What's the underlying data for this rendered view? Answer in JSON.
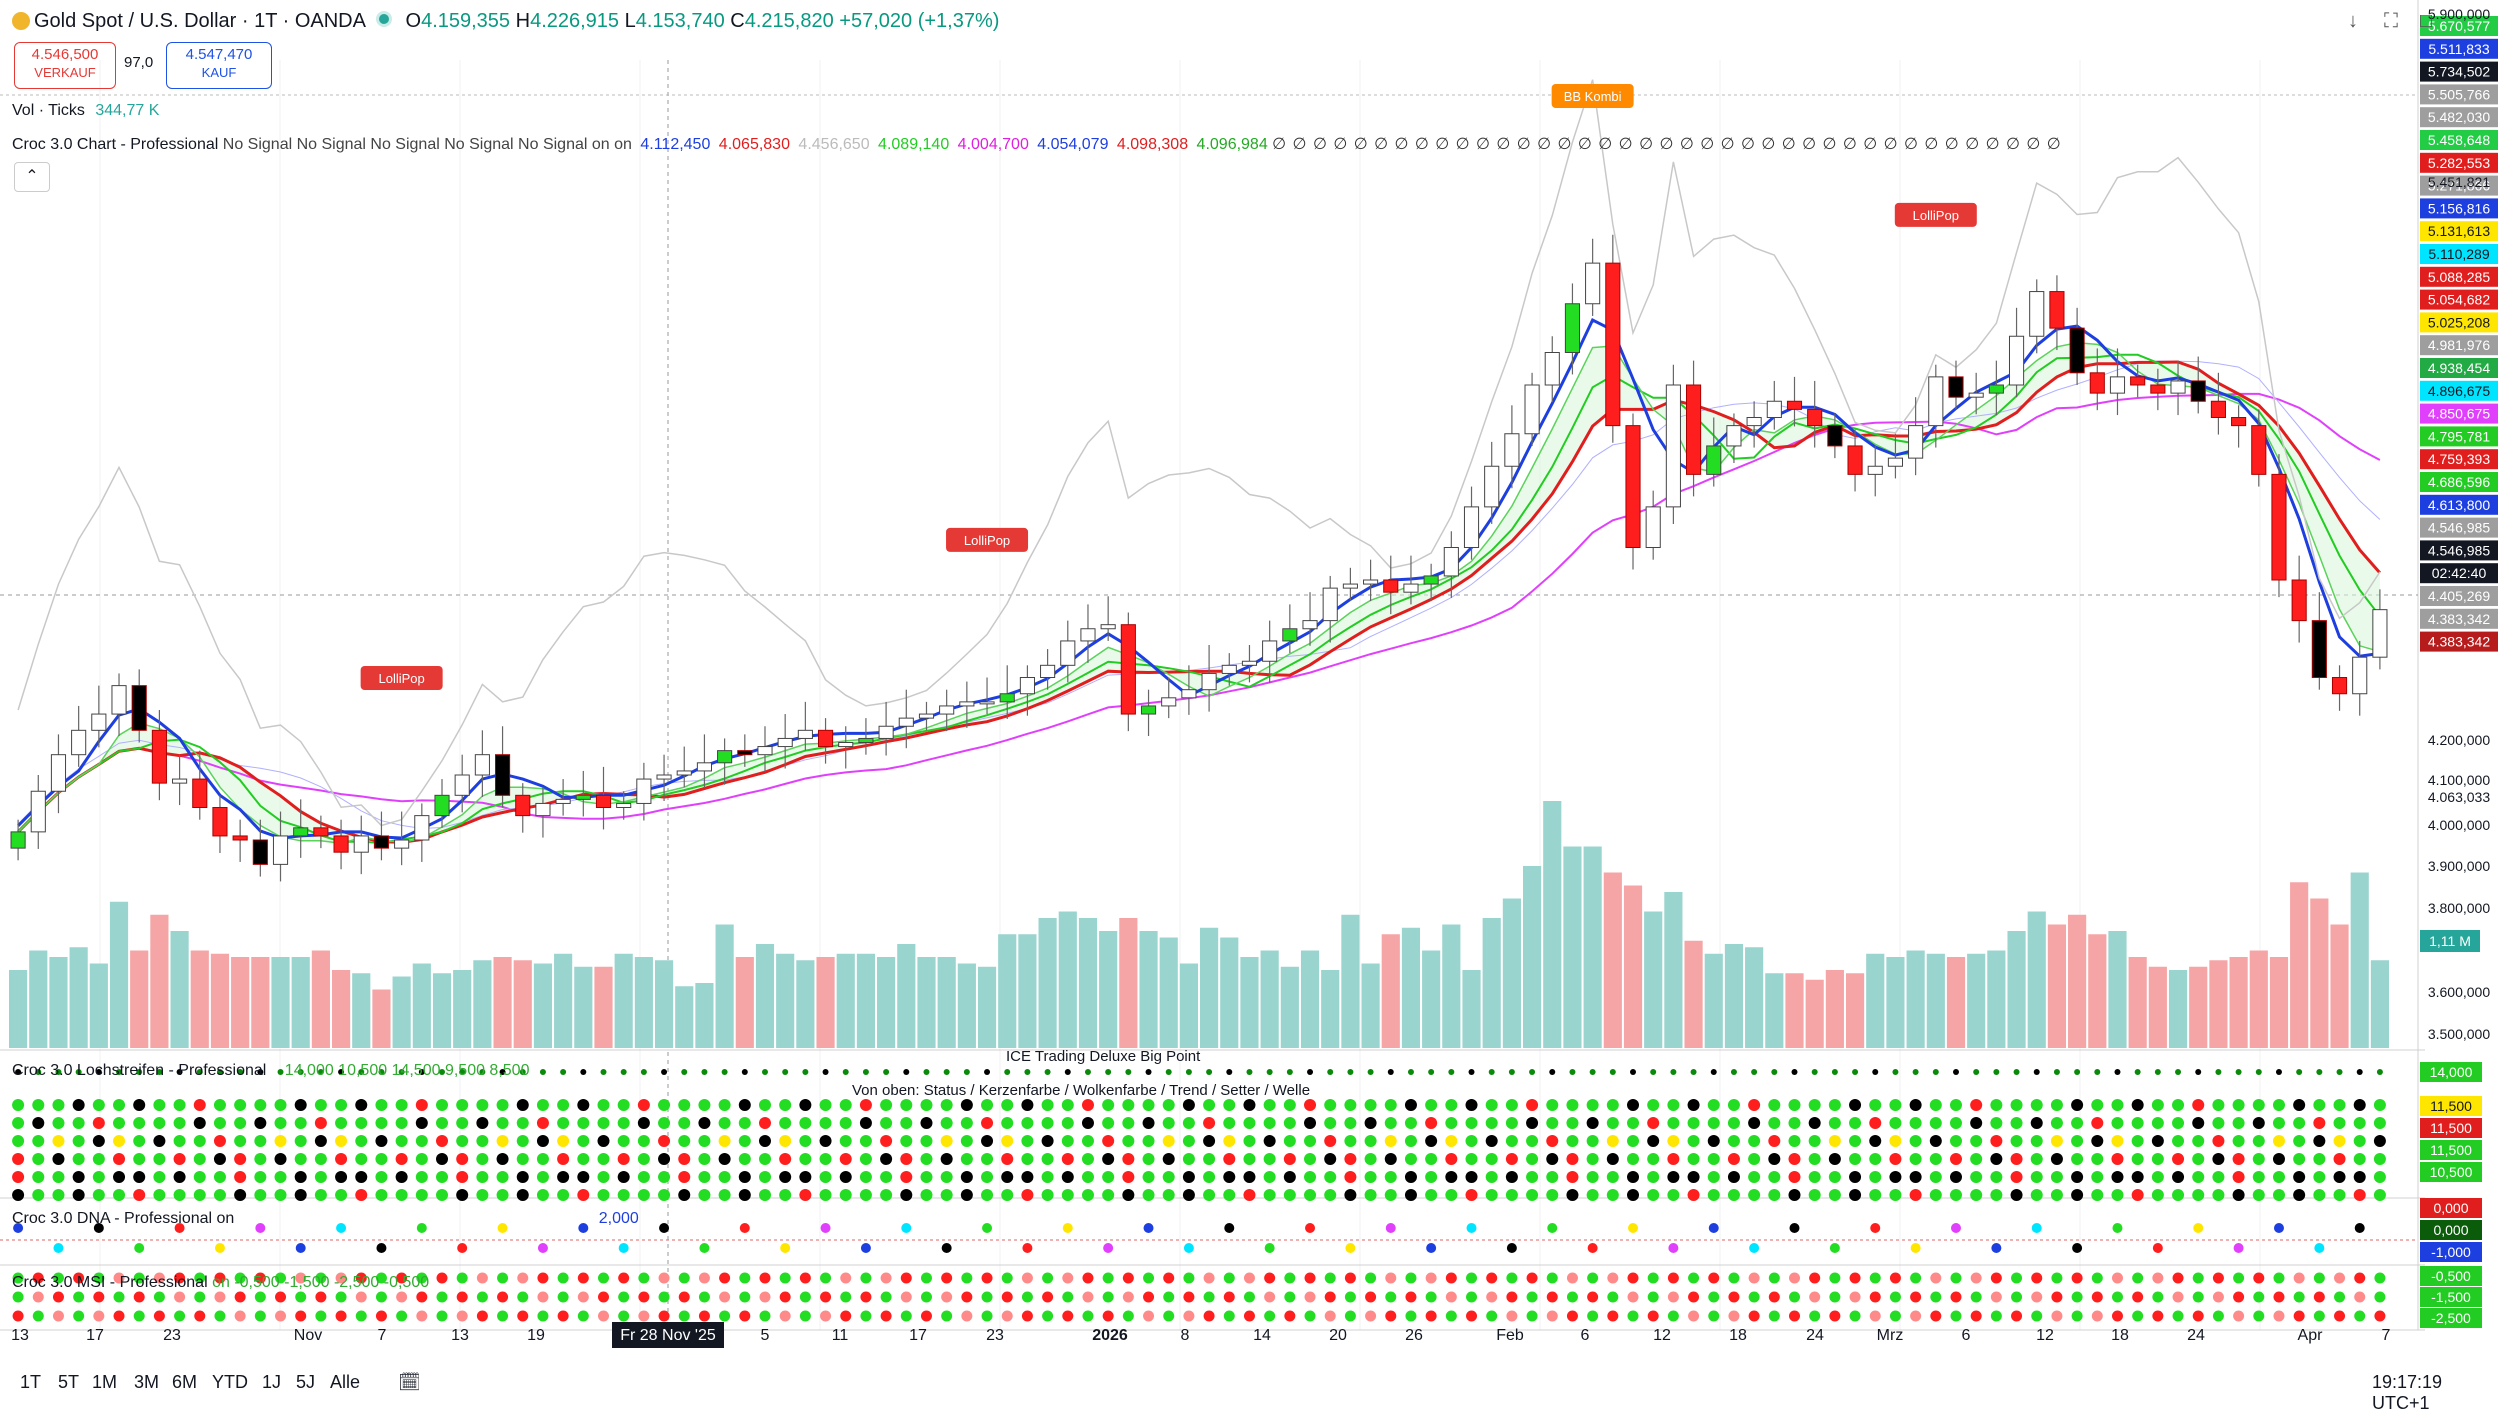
{
  "header": {
    "symbol": "Gold Spot / U.S. Dollar · 1T · OANDA",
    "open_label": "O",
    "open": "4.159,355",
    "high_label": "H",
    "high": "4.226,915",
    "low_label": "L",
    "low": "4.153,740",
    "close_label": "C",
    "close": "4.215,820",
    "change": "+57,020 (+1,37%)"
  },
  "trade": {
    "sell_price": "4.546,500",
    "sell_label": "VERKAUF",
    "spread": "97,0",
    "buy_price": "4.547,470",
    "buy_label": "KAUF"
  },
  "indicators": {
    "vol_label": "Vol · Ticks",
    "vol_value": "344,77 K",
    "croc_chart_label": "Croc 3.0 Chart - Professional",
    "croc_chart_signals": "No Signal No Signal No Signal No Signal No Signal on on",
    "croc_values": [
      {
        "text": "4.112,450",
        "color": "#1e3fe0"
      },
      {
        "text": "4.065,830",
        "color": "#e01e1e"
      },
      {
        "text": "4.456,650",
        "color": "#bbbbbb"
      },
      {
        "text": "4.089,140",
        "color": "#22cc22"
      },
      {
        "text": "4.004,700",
        "color": "#e01ee0"
      },
      {
        "text": "4.054,079",
        "color": "#1e3fe0"
      },
      {
        "text": "4.098,308",
        "color": "#e01e1e"
      },
      {
        "text": "4.096,984",
        "color": "#22aa22"
      }
    ],
    "empty_marks": "∅ ∅ ∅ ∅ ∅ ∅ ∅ ∅ ∅ ∅ ∅ ∅ ∅ ∅ ∅ ∅ ∅ ∅ ∅ ∅ ∅ ∅ ∅ ∅ ∅ ∅ ∅ ∅ ∅ ∅ ∅ ∅ ∅ ∅ ∅ ∅ ∅ ∅ ∅"
  },
  "chart_data": {
    "type": "candlestick",
    "x": [
      "2025-10-13",
      "2025-10-14",
      "2025-10-15",
      "2025-10-16",
      "2025-10-17",
      "2025-10-20",
      "2025-10-21",
      "2025-10-22",
      "2025-10-23",
      "2025-10-24",
      "2025-10-27",
      "2025-10-28",
      "2025-10-29",
      "2025-10-30",
      "2025-10-31",
      "2025-11-03",
      "2025-11-04",
      "2025-11-05",
      "2025-11-06",
      "2025-11-07",
      "2025-11-10",
      "2025-11-11",
      "2025-11-12",
      "2025-11-13",
      "2025-11-14",
      "2025-11-17",
      "2025-11-18",
      "2025-11-19",
      "2025-11-20",
      "2025-11-21",
      "2025-11-24",
      "2025-11-25",
      "2025-11-26",
      "2025-11-27",
      "2025-11-28",
      "2025-12-01",
      "2025-12-02",
      "2025-12-03",
      "2025-12-04",
      "2025-12-05",
      "2025-12-08",
      "2025-12-09",
      "2025-12-10",
      "2025-12-11",
      "2025-12-12",
      "2025-12-15",
      "2025-12-16",
      "2025-12-17",
      "2025-12-18",
      "2025-12-19",
      "2025-12-22",
      "2025-12-23",
      "2025-12-24",
      "2025-12-25",
      "2025-12-26",
      "2025-12-29",
      "2025-12-30",
      "2025-12-31",
      "2026-01-01",
      "2026-01-02",
      "2026-01-05",
      "2026-01-06",
      "2026-01-07",
      "2026-01-08",
      "2026-01-09",
      "2026-01-12",
      "2026-01-13",
      "2026-01-14",
      "2026-01-15",
      "2026-01-16",
      "2026-01-19",
      "2026-01-20",
      "2026-01-21",
      "2026-01-22",
      "2026-01-23",
      "2026-01-26",
      "2026-01-27",
      "2026-01-28",
      "2026-01-29",
      "2026-01-30",
      "2026-02-02",
      "2026-02-03",
      "2026-02-04",
      "2026-02-05",
      "2026-02-06",
      "2026-02-09",
      "2026-02-10",
      "2026-02-11",
      "2026-02-12",
      "2026-02-13",
      "2026-02-16",
      "2026-02-17",
      "2026-02-18",
      "2026-02-19",
      "2026-02-20",
      "2026-02-23",
      "2026-02-24",
      "2026-02-25",
      "2026-02-26",
      "2026-02-27",
      "2026-03-02",
      "2026-03-03",
      "2026-03-04",
      "2026-03-05",
      "2026-03-06",
      "2026-03-09",
      "2026-03-10",
      "2026-03-11",
      "2026-03-12",
      "2026-03-13",
      "2026-03-16",
      "2026-03-17",
      "2026-03-18",
      "2026-03-19",
      "2026-03-20",
      "2026-03-23",
      "2026-03-24",
      "2026-03-25"
    ],
    "close": [
      4000,
      4100,
      4190,
      4250,
      4290,
      4360,
      4250,
      4120,
      4130,
      4060,
      3990,
      3980,
      3920,
      3990,
      4010,
      3990,
      3950,
      3990,
      3960,
      3980,
      4040,
      4090,
      4140,
      4190,
      4090,
      4040,
      4070,
      4080,
      4090,
      4060,
      4070,
      4130,
      4140,
      4150,
      4170,
      4200,
      4190,
      4210,
      4230,
      4250,
      4210,
      4220,
      4230,
      4260,
      4280,
      4290,
      4310,
      4320,
      4320,
      4340,
      4380,
      4410,
      4470,
      4500,
      4510,
      4290,
      4310,
      4330,
      4350,
      4390,
      4410,
      4420,
      4470,
      4500,
      4520,
      4600,
      4610,
      4620,
      4590,
      4610,
      4630,
      4700,
      4800,
      4900,
      4980,
      5100,
      5180,
      5300,
      5400,
      5000,
      4700,
      4800,
      5100,
      4880,
      4950,
      5000,
      5020,
      5060,
      5040,
      5000,
      4950,
      4880,
      4900,
      4920,
      5000,
      5120,
      5070,
      5080,
      5100,
      5220,
      5330,
      5240,
      5130,
      5080,
      5120,
      5100,
      5080,
      5110,
      5060,
      5020,
      5000,
      4880,
      4620,
      4520,
      4380,
      4340,
      4430,
      4547
    ],
    "volume": [
      120,
      150,
      140,
      155,
      130,
      225,
      150,
      205,
      180,
      150,
      145,
      140,
      140,
      140,
      140,
      150,
      120,
      115,
      90,
      110,
      130,
      115,
      120,
      135,
      140,
      135,
      130,
      145,
      125,
      125,
      145,
      140,
      135,
      95,
      100,
      190,
      140,
      160,
      145,
      135,
      140,
      145,
      145,
      140,
      160,
      140,
      140,
      130,
      125,
      175,
      175,
      200,
      210,
      200,
      180,
      200,
      180,
      170,
      130,
      185,
      170,
      140,
      150,
      125,
      150,
      120,
      205,
      130,
      175,
      185,
      150,
      190,
      120,
      200,
      230,
      280,
      380,
      310,
      310,
      270,
      250,
      210,
      240,
      165,
      145,
      160,
      155,
      115,
      115,
      105,
      120,
      115,
      145,
      140,
      150,
      145,
      140,
      145,
      150,
      180,
      210,
      190,
      205,
      175,
      180,
      140,
      125,
      120,
      125,
      135,
      140,
      150,
      140,
      255,
      230,
      190,
      270,
      135
    ],
    "ylim": [
      3500,
      5900
    ],
    "y_ticks": [
      "5.900,000",
      "5.451,821",
      "4.200,000",
      "4.100,000",
      "4.063,033",
      "4.000,000",
      "3.900,000",
      "3.800,000",
      "3.600,000",
      "3.500,000"
    ],
    "x_ticks": [
      "13",
      "17",
      "23",
      "Nov",
      "7",
      "13",
      "19",
      "Fr 28 Nov '25",
      "5",
      "11",
      "17",
      "23",
      "2026",
      "8",
      "14",
      "20",
      "26",
      "Feb",
      "6",
      "12",
      "18",
      "24",
      "Mrz",
      "6",
      "12",
      "18",
      "24",
      "Apr",
      "7"
    ],
    "markers": [
      "BB Kombi",
      "LolliPop",
      "LolliPop",
      "LolliPop"
    ],
    "right_scale_labels": [
      {
        "text": "5.670,577",
        "color": "#22cc44"
      },
      {
        "text": "5.511,833",
        "color": "#1e3fe0"
      },
      {
        "text": "5.734,502",
        "color": "#131722"
      },
      {
        "text": "5.505,766",
        "color": "#9e9e9e"
      },
      {
        "text": "5.482,030",
        "color": "#9e9e9e"
      },
      {
        "text": "5.458,648",
        "color": "#22cc44"
      },
      {
        "text": "5.282,553",
        "color": "#e01e1e"
      },
      {
        "text": "5.271,866",
        "color": "#9e9e9e"
      },
      {
        "text": "5.156,816",
        "color": "#1e3fe0"
      },
      {
        "text": "5.131,613",
        "color": "#ffe600"
      },
      {
        "text": "5.110,289",
        "color": "#00e5ff"
      },
      {
        "text": "5.088,285",
        "color": "#e01e1e"
      },
      {
        "text": "5.054,682",
        "color": "#e01e1e"
      },
      {
        "text": "5.025,208",
        "color": "#ffe600"
      },
      {
        "text": "4.981,976",
        "color": "#9e9e9e"
      },
      {
        "text": "4.938,454",
        "color": "#22aa44"
      },
      {
        "text": "4.896,675",
        "color": "#00e5ff"
      },
      {
        "text": "4.850,675",
        "color": "#e040fb"
      },
      {
        "text": "4.795,781",
        "color": "#22cc22"
      },
      {
        "text": "4.759,393",
        "color": "#e01e1e"
      },
      {
        "text": "4.686,596",
        "color": "#22cc22"
      },
      {
        "text": "4.613,800",
        "color": "#1e3fe0"
      },
      {
        "text": "4.546,985",
        "color": "#9e9e9e"
      },
      {
        "text": "4.546,985",
        "color": "#131722"
      },
      {
        "text": "02:42:40",
        "color": "#131722"
      },
      {
        "text": "4.405,269",
        "color": "#9e9e9e"
      },
      {
        "text": "4.383,342",
        "color": "#9e9e9e"
      },
      {
        "text": "4.383,342",
        "color": "#b71c1c"
      }
    ],
    "volume_last_label": "1,11 M"
  },
  "panes": {
    "lochstreifen_label": "Croc 3.0 Lochstreifen - Professional",
    "lochstreifen_vals": "14,000  10,500  14,500  9,500  8,500",
    "lochstreifen_title": "ICE Trading Deluxe Big Point",
    "lochstreifen_sub": "Von oben: Status / Kerzenfarbe / Wolkenfarbe / Trend / Setter / Welle",
    "lochstreifen_scale": [
      {
        "text": "14,000",
        "color": "#22cc22"
      },
      {
        "text": "11,500",
        "color": "#ffe600"
      },
      {
        "text": "11,500",
        "color": "#e01e1e"
      },
      {
        "text": "11,500",
        "color": "#22cc22"
      },
      {
        "text": "10,500",
        "color": "#22cc22"
      }
    ],
    "dna_label": "Croc 3.0 DNA - Professional",
    "dna_on": "on",
    "dna_value": "2,000",
    "dna_scale": [
      {
        "text": "0,000",
        "color": "#e01e1e"
      },
      {
        "text": "0,000",
        "color": "#0a5c0a"
      },
      {
        "text": "-1,000",
        "color": "#1e3fe0"
      }
    ],
    "msi_label": "Croc 3.0 MSI - Professional",
    "msi_vals": "on  -0,500  -1,500  -2,500  -0,500",
    "msi_scale": [
      {
        "text": "-0,500",
        "color": "#22cc22"
      },
      {
        "text": "-1,500",
        "color": "#22cc22"
      },
      {
        "text": "-2,500",
        "color": "#22cc22"
      }
    ]
  },
  "timeframes": [
    "1T",
    "5T",
    "1M",
    "3M",
    "6M",
    "YTD",
    "1J",
    "5J",
    "Alle"
  ],
  "clock": "19:17:19 UTC+1",
  "colors": {
    "up": "#26a69a",
    "down": "#ef5350",
    "blue": "#1e3fe0",
    "red": "#e01e1e",
    "green": "#22cc22",
    "magenta": "#e040fb"
  }
}
